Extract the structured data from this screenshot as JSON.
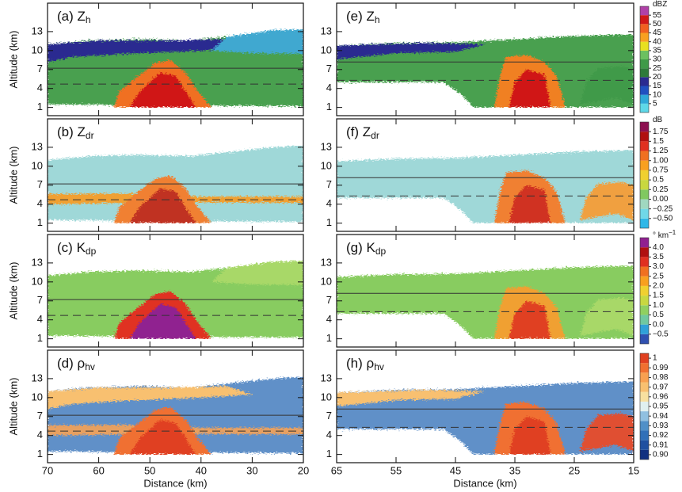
{
  "figure": {
    "ylabel": "Altitude (km)",
    "xlabel": "Distance (km)",
    "ylim": [
      -0.3,
      17.5
    ],
    "yticks": [
      1,
      4,
      7,
      10,
      13
    ],
    "columns": [
      {
        "xlim": [
          70,
          20
        ],
        "xticks": [
          70,
          60,
          50,
          40,
          30,
          20
        ],
        "solid_line": 7.2,
        "dashed_line": 4.7
      },
      {
        "xlim": [
          65,
          15
        ],
        "xticks": [
          65,
          55,
          45,
          35,
          25,
          15
        ],
        "solid_line": 8.2,
        "dashed_line": 5.3
      }
    ],
    "panels": [
      {
        "label": "(a)",
        "symbol": "Z",
        "sub": "h"
      },
      {
        "label": "(e)",
        "symbol": "Z",
        "sub": "h"
      },
      {
        "label": "(b)",
        "symbol": "Z",
        "sub": "dr"
      },
      {
        "label": "(f)",
        "symbol": "Z",
        "sub": "dr"
      },
      {
        "label": "(c)",
        "symbol": "K",
        "sub": "dp"
      },
      {
        "label": "(g)",
        "symbol": "K",
        "sub": "dp"
      },
      {
        "label": "(d)",
        "symbol": "ρ",
        "sub": "hv"
      },
      {
        "label": "(h)",
        "symbol": "ρ",
        "sub": "hv"
      }
    ],
    "colorbars": [
      {
        "unit": "dBZ",
        "lim": [
          0,
          60
        ],
        "ticks": [
          55,
          50,
          45,
          40,
          35,
          30,
          25,
          20,
          15,
          10,
          5
        ],
        "colors": [
          "#5fd8e8",
          "#2fa8d8",
          "#2050c0",
          "#2a2a90",
          "#2e7a3a",
          "#3f9a48",
          "#6cc060",
          "#e8e020",
          "#f8a020",
          "#f06020",
          "#d01818",
          "#b040a8"
        ]
      },
      {
        "unit": "dB",
        "lim": [
          -0.75,
          2.0
        ],
        "ticks": [
          1.75,
          1.5,
          1.25,
          {
            "value": 1.0,
            "label": "1.00"
          },
          0.75,
          0.5,
          0.25,
          {
            "value": 0,
            "label": "0.00"
          },
          {
            "value": -0.25,
            "label": "−0.25"
          },
          {
            "value": -0.5,
            "label": "−0.50"
          }
        ],
        "colors": [
          "#30b8e8",
          "#70d8e8",
          "#a0d8c0",
          "#80c860",
          "#c8d840",
          "#f0d030",
          "#f8a020",
          "#f07020",
          "#e03020",
          "#b01010",
          "#8c1050"
        ]
      },
      {
        "unit": "° km",
        "unit_sup": "−1",
        "lim": [
          -1,
          4.5
        ],
        "ticks": [
          {
            "value": 4,
            "label": "4.0"
          },
          3.5,
          {
            "value": 3,
            "label": "3.0"
          },
          2.5,
          {
            "value": 2,
            "label": "2.0"
          },
          1.5,
          {
            "value": 1,
            "label": "1.0"
          },
          0.5,
          {
            "value": 0,
            "label": "0.0"
          },
          {
            "value": -0.5,
            "label": "−0.5"
          }
        ],
        "colors": [
          "#3050b0",
          "#30a0d8",
          "#70c8a0",
          "#90d060",
          "#c8d840",
          "#f0d030",
          "#f8a020",
          "#f07020",
          "#e03020",
          "#b01010",
          "#902090"
        ]
      },
      {
        "unit": "",
        "lim": [
          0.895,
          1.005
        ],
        "ticks": [
          1,
          0.99,
          0.98,
          0.97,
          0.96,
          0.95,
          0.94,
          0.93,
          0.92,
          0.91,
          {
            "value": 0.9,
            "label": "0.90"
          }
        ],
        "colors": [
          "#103080",
          "#2050a0",
          "#3070b8",
          "#5090c8",
          "#90c0e0",
          "#e0f0f0",
          "#f8e0a0",
          "#f8c070",
          "#f8a050",
          "#f07030",
          "#e04020"
        ]
      }
    ]
  }
}
